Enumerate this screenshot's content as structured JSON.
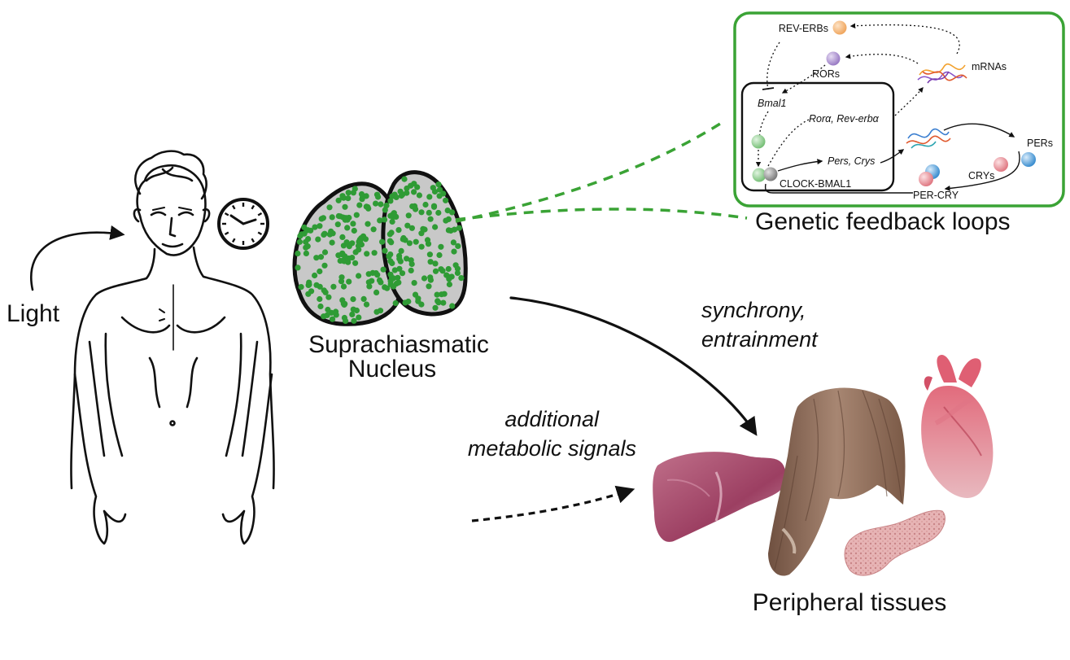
{
  "labels": {
    "light": "Light",
    "scn_line1": "Suprachiasmatic",
    "scn_line2": "Nucleus",
    "genetic_feedback": "Genetic feedback loops",
    "sync_line1": "synchrony,",
    "sync_line2": "entrainment",
    "metab_line1": "additional",
    "metab_line2": "metabolic signals",
    "peripheral": "Peripheral tissues"
  },
  "inset": {
    "rev_erbs": "REV-ERBs",
    "rors": "RORs",
    "bmal1": "Bmal1",
    "mrnas": "mRNAs",
    "ror_rev": "Rorα, Rev-erbα",
    "pers_crys": "Pers, Crys",
    "clock_bmal1": "CLOCK-BMAL1",
    "pers": "PERs",
    "crys": "CRYs",
    "per_cry": "PER-CRY"
  },
  "colors": {
    "scn_green": "#2f9b35",
    "scn_fill": "#c8c8c8",
    "inset_border": "#3aa335",
    "dash_green": "#3aa335",
    "rev_erb_ball": "#f5b57a",
    "ror_ball": "#b59ad6",
    "bmal_ball": "#8fd08f",
    "clock_ball": "#9a9a9a",
    "per_ball": "#5aa7dd",
    "cry_ball": "#ec8f96",
    "liver": "#a84a6a",
    "muscle": "#8a6a55",
    "heart": "#d98a96",
    "pancreas": "#e1a6a8"
  }
}
